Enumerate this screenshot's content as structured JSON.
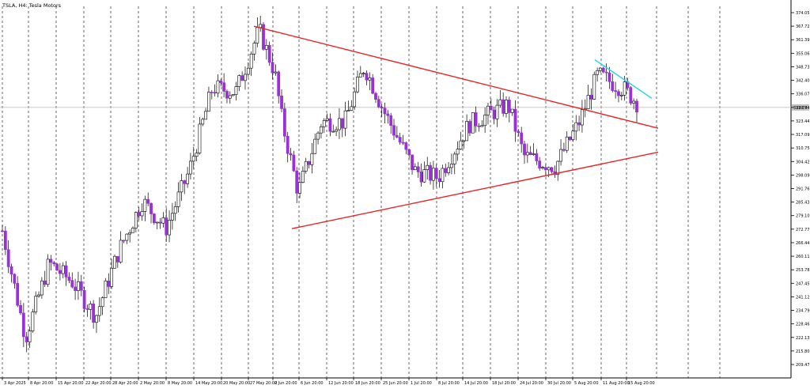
{
  "window": {
    "title": "TSLA, H4:  Tesla Motors"
  },
  "colors": {
    "background": "#ffffff",
    "bull_candle": "#ffffff",
    "bull_outline": "#000000",
    "bear_candle": "#9b30d9",
    "wick": "#000000",
    "trendline_red": "#e82424",
    "trendline_cyan": "#22d3e6",
    "grid": "#000000",
    "price_line": "#c0c0c0"
  },
  "chart_data": {
    "type": "candlestick",
    "title": "TSLA, H4:  Tesla Motors",
    "xlabel": "",
    "ylabel": "",
    "ylim": [
      205.0,
      378.0
    ],
    "y_ticks": [
      "374.05",
      "367.72",
      "361.39",
      "355.06",
      "348.73",
      "342.40",
      "336.07",
      "329.74",
      "323.44",
      "317.09",
      "310.75",
      "304.42",
      "298.09",
      "291.76",
      "285.43",
      "279.10",
      "272.77",
      "266.44",
      "260.11",
      "253.78",
      "247.45",
      "241.12",
      "234.79",
      "228.46",
      "222.13",
      "215.80",
      "209.47"
    ],
    "current_price": 329.74,
    "x_ticks": [
      "3 Apr 2025",
      "8 Apr 20:00",
      "15 Apr 20:00",
      "22 Apr 20:00",
      "28 Apr 20:00",
      "2 May 20:00",
      "8 May 20:00",
      "14 May 20:00",
      "20 May 20:00",
      "27 May 20:00",
      "2 Jun 20:00",
      "6 Jun 20:00",
      "12 Jun 20:00",
      "18 Jun 20:00",
      "25 Jun 20:00",
      "1 Jul 20:00",
      "8 Jul 20:00",
      "14 Jul 20:00",
      "18 Jul 20:00",
      "24 Jul 20:00",
      "30 Jul 20:00",
      "5 Aug 20:00",
      "11 Aug 20:00",
      "15 Aug 20:00"
    ],
    "trendlines": [
      {
        "name": "",
        "color": "#e82424",
        "from": [
          0,
          367.7
        ],
        "to": [
          1,
          320.0
        ]
      },
      {
        "name": "",
        "color": "#e82424",
        "from": [
          0,
          273.0
        ],
        "to": [
          1,
          308.8
        ]
      },
      {
        "name": "",
        "color": "#22d3e6",
        "from": [
          0,
          352.0
        ],
        "to": [
          1,
          334.0
        ]
      }
    ],
    "control_points": [
      [
        0,
        272
      ],
      [
        0.03,
        222
      ],
      [
        0.06,
        257
      ],
      [
        0.09,
        248
      ],
      [
        0.12,
        232
      ],
      [
        0.15,
        263
      ],
      [
        0.18,
        286
      ],
      [
        0.21,
        273
      ],
      [
        0.24,
        300
      ],
      [
        0.27,
        339
      ],
      [
        0.3,
        337
      ],
      [
        0.33,
        366
      ],
      [
        0.35,
        346
      ],
      [
        0.36,
        322
      ],
      [
        0.38,
        290
      ],
      [
        0.41,
        323
      ],
      [
        0.44,
        323
      ],
      [
        0.465,
        349
      ],
      [
        0.49,
        328
      ],
      [
        0.53,
        300
      ],
      [
        0.56,
        297
      ],
      [
        0.6,
        322
      ],
      [
        0.65,
        331
      ],
      [
        0.67,
        307
      ],
      [
        0.71,
        302
      ],
      [
        0.74,
        322
      ],
      [
        0.765,
        345
      ],
      [
        0.8,
        338
      ],
      [
        0.815,
        332
      ]
    ],
    "candle_count": 210
  }
}
